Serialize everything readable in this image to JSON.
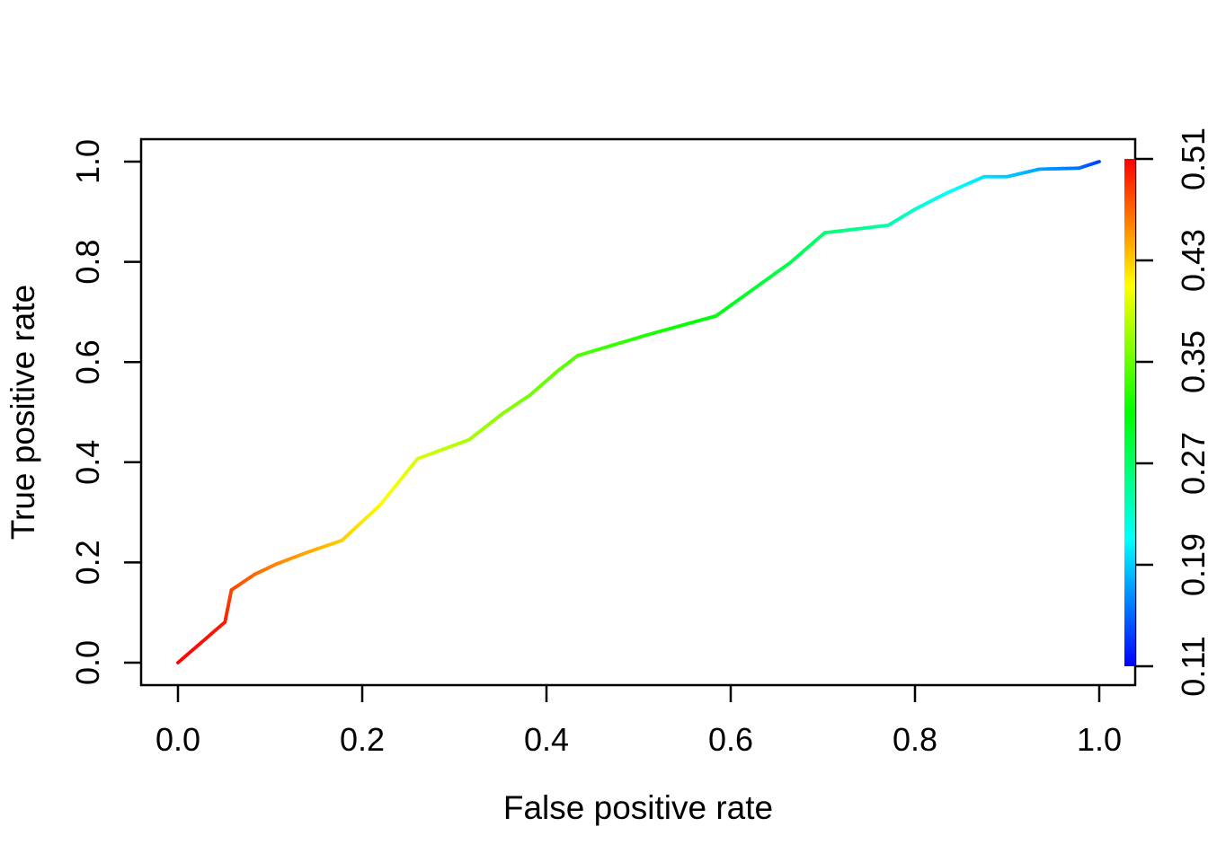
{
  "figure": {
    "background_color": "#ffffff",
    "axis_color": "#000000"
  },
  "chart_data": {
    "type": "line",
    "description": "ROC curve colorized by prediction cutoff (rainbow colormap)",
    "title": "",
    "xlabel": "False positive rate",
    "ylabel": "True positive rate",
    "xlim": [
      0.0,
      1.0
    ],
    "ylim": [
      0.0,
      1.0
    ],
    "grid": false,
    "x_ticks": {
      "values": [
        0.0,
        0.2,
        0.4,
        0.6,
        0.8,
        1.0
      ],
      "labels": [
        "0.0",
        "0.2",
        "0.4",
        "0.6",
        "0.8",
        "1.0"
      ]
    },
    "y_ticks": {
      "values": [
        0.0,
        0.2,
        0.4,
        0.6,
        0.8,
        1.0
      ],
      "labels": [
        "0.0",
        "0.2",
        "0.4",
        "0.6",
        "0.8",
        "1.0"
      ]
    },
    "series": [
      {
        "name": "roc-curve",
        "points_fpr_tpr_cutoff": [
          [
            0.0,
            0.0,
            0.51
          ],
          [
            0.051,
            0.081,
            0.5
          ],
          [
            0.058,
            0.145,
            0.483
          ],
          [
            0.083,
            0.176,
            0.47
          ],
          [
            0.107,
            0.197,
            0.458
          ],
          [
            0.14,
            0.22,
            0.445
          ],
          [
            0.178,
            0.244,
            0.43
          ],
          [
            0.219,
            0.314,
            0.413
          ],
          [
            0.26,
            0.407,
            0.395
          ],
          [
            0.316,
            0.445,
            0.377
          ],
          [
            0.353,
            0.498,
            0.364
          ],
          [
            0.382,
            0.534,
            0.356
          ],
          [
            0.412,
            0.582,
            0.348
          ],
          [
            0.434,
            0.613,
            0.342
          ],
          [
            0.509,
            0.654,
            0.321
          ],
          [
            0.584,
            0.692,
            0.303
          ],
          [
            0.665,
            0.799,
            0.281
          ],
          [
            0.702,
            0.858,
            0.266
          ],
          [
            0.771,
            0.873,
            0.245
          ],
          [
            0.8,
            0.905,
            0.228
          ],
          [
            0.834,
            0.937,
            0.214
          ],
          [
            0.875,
            0.97,
            0.199
          ],
          [
            0.9,
            0.97,
            0.19
          ],
          [
            0.935,
            0.985,
            0.175
          ],
          [
            0.978,
            0.987,
            0.154
          ],
          [
            1.0,
            1.0,
            0.135
          ]
        ]
      }
    ],
    "colorbar": {
      "position": "right",
      "min": 0.11,
      "max": 0.51,
      "tick_values": [
        0.11,
        0.19,
        0.27,
        0.35,
        0.43,
        0.51
      ],
      "tick_labels": [
        "0.11",
        "0.19",
        "0.27",
        "0.35",
        "0.43",
        "0.51"
      ],
      "gradient_top_to_bottom": [
        "#FF0000",
        "#FFFF00",
        "#00FF00",
        "#00FFFF",
        "#0000FF"
      ]
    }
  }
}
